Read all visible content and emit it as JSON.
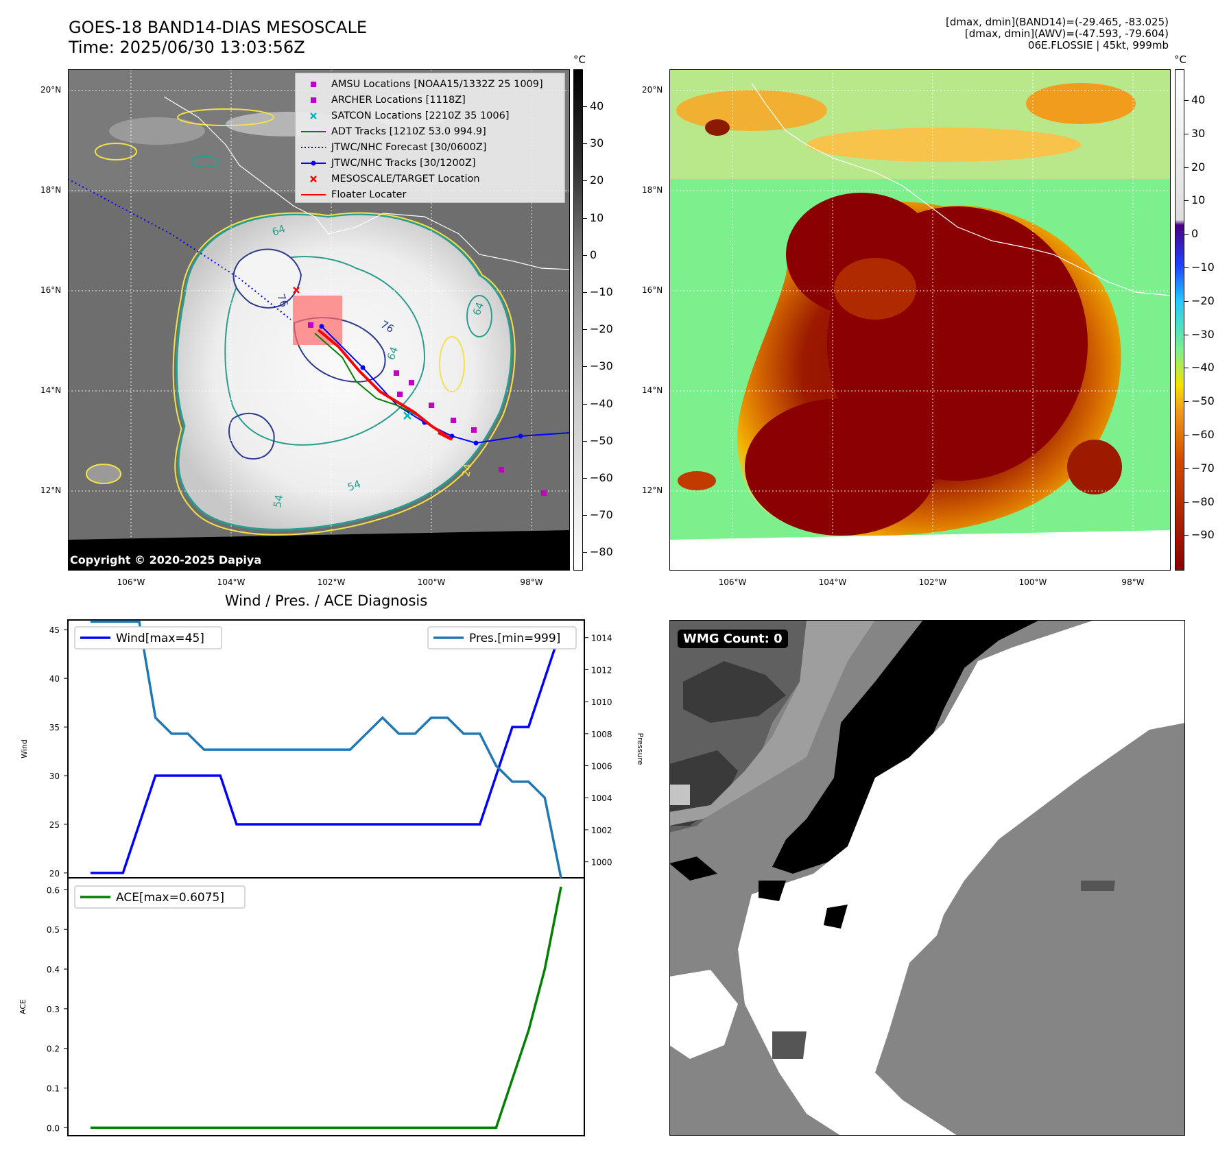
{
  "top_left": {
    "title_line1": "GOES-18 BAND14-DIAS MESOSCALE",
    "title_line2": "Time: 2025/06/30 13:03:56Z",
    "copyright": "Copyright © 2020-2025 Dapiya",
    "colorbar_unit": "°C",
    "colorbar_ticks": [
      "40",
      "30",
      "20",
      "10",
      "0",
      "−10",
      "−20",
      "−30",
      "−40",
      "−50",
      "−60",
      "−70",
      "−80"
    ],
    "lat_labels": [
      "20°N",
      "18°N",
      "16°N",
      "14°N",
      "12°N"
    ],
    "lon_labels": [
      "106°W",
      "104°W",
      "102°W",
      "100°W",
      "98°W"
    ],
    "contour_labels": [
      "64",
      "76",
      "76",
      "64",
      "64",
      "54",
      "24",
      "54"
    ],
    "legend": [
      {
        "label": "AMSU Locations [NOAA15/1332Z 25 1009]",
        "symbol": "square",
        "color": "#c000c0"
      },
      {
        "label": "ARCHER Locations [1118Z]",
        "symbol": "square",
        "color": "#c000c0"
      },
      {
        "label": "SATCON Locations [2210Z 35 1006]",
        "symbol": "x",
        "color": "#00b8b8"
      },
      {
        "label": "ADT Tracks [1210Z 53.0 994.9]",
        "symbol": "line",
        "color": "#008000"
      },
      {
        "label": "JTWC/NHC Forecast [30/0600Z]",
        "symbol": "dotted",
        "color": "#0000ff"
      },
      {
        "label": "JTWC/NHC Tracks [30/1200Z]",
        "symbol": "line-dot",
        "color": "#0000ff"
      },
      {
        "label": "MESOSCALE/TARGET Location",
        "symbol": "x",
        "color": "#ff0000"
      },
      {
        "label": "Floater Locater",
        "symbol": "line",
        "color": "#ff0000"
      }
    ]
  },
  "top_right": {
    "header_line1": "[dmax, dmin](BAND14)=(-29.465, -83.025)",
    "header_line2": "[dmax, dmin](AWV)=(-47.593, -79.604)",
    "header_line3": "06E.FLOSSIE | 45kt, 999mb",
    "colorbar_unit": "°C",
    "colorbar_ticks": [
      "40",
      "30",
      "20",
      "10",
      "0",
      "−10",
      "−20",
      "−30",
      "−40",
      "−50",
      "−60",
      "−70",
      "−80",
      "−90"
    ],
    "lat_labels": [
      "20°N",
      "18°N",
      "16°N",
      "14°N",
      "12°N"
    ],
    "lon_labels": [
      "106°W",
      "104°W",
      "102°W",
      "100°W",
      "98°W"
    ]
  },
  "bottom_right": {
    "badge": "WMG Count: 0"
  },
  "chart_data": [
    {
      "type": "line",
      "title": "Wind / Pres. / ACE Diagnosis",
      "ylabel": "Wind",
      "y2label": "Pressure",
      "ylim": [
        19.5,
        46
      ],
      "y2lim": [
        999,
        1015.1
      ],
      "yticks": [
        20,
        25,
        30,
        35,
        40,
        45
      ],
      "y2ticks": [
        1000,
        1002,
        1004,
        1006,
        1008,
        1010,
        1012,
        1014
      ],
      "x": [
        0,
        1,
        2,
        3,
        4,
        5,
        6,
        7,
        8,
        9,
        10,
        11,
        12,
        13,
        14,
        15,
        16,
        17,
        18,
        19,
        20,
        21,
        22,
        23,
        24,
        25,
        26,
        27,
        28,
        29
      ],
      "series": [
        {
          "name": "Wind[max=45]",
          "axis": "left",
          "color": "#0000ff",
          "values": [
            20,
            20,
            20,
            25,
            30,
            30,
            30,
            30,
            30,
            25,
            25,
            25,
            25,
            25,
            25,
            25,
            25,
            25,
            25,
            25,
            25,
            25,
            25,
            25,
            25,
            30,
            35,
            35,
            40,
            45
          ]
        },
        {
          "name": "Pres.[min=999]",
          "axis": "right",
          "color": "#1f77b4",
          "values": [
            1015,
            1015,
            1015,
            1015,
            1009,
            1008,
            1008,
            1007,
            1007,
            1007,
            1007,
            1007,
            1007,
            1007,
            1007,
            1007,
            1007,
            1008,
            1009,
            1008,
            1008,
            1009,
            1009,
            1008,
            1008,
            1006,
            1005,
            1005,
            1004,
            999
          ]
        }
      ]
    },
    {
      "type": "line",
      "ylabel": "ACE",
      "ylim": [
        -0.02,
        0.63
      ],
      "yticks": [
        0.0,
        0.1,
        0.2,
        0.3,
        0.4,
        0.5,
        0.6
      ],
      "x": [
        0,
        1,
        2,
        3,
        4,
        5,
        6,
        7,
        8,
        9,
        10,
        11,
        12,
        13,
        14,
        15,
        16,
        17,
        18,
        19,
        20,
        21,
        22,
        23,
        24,
        25,
        26,
        27,
        28,
        29
      ],
      "series": [
        {
          "name": "ACE[max=0.6075]",
          "color": "#008000",
          "values": [
            0,
            0,
            0,
            0,
            0,
            0,
            0,
            0,
            0,
            0,
            0,
            0,
            0,
            0,
            0,
            0,
            0,
            0,
            0,
            0,
            0,
            0,
            0,
            0,
            0,
            0,
            0.1225,
            0.245,
            0.4,
            0.6075
          ]
        }
      ]
    }
  ]
}
